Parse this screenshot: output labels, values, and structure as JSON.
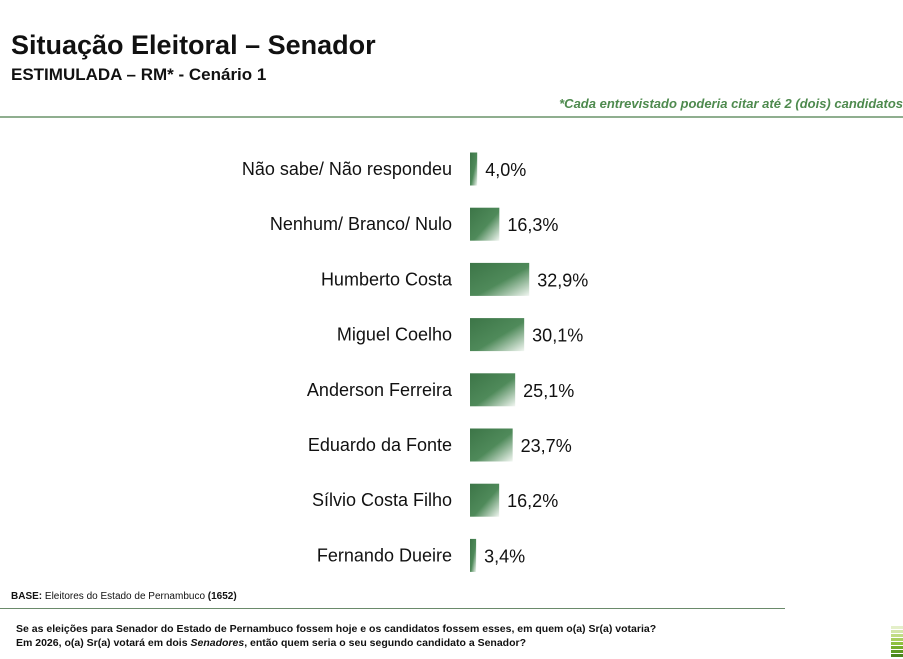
{
  "header": {
    "title": "Situação Eleitoral – Senador",
    "subtitle": "ESTIMULADA – RM* - Cenário 1",
    "note": "*Cada entrevistado poderia citar até 2 (dois) candidatos"
  },
  "chart_data": {
    "type": "bar",
    "orientation": "horizontal",
    "title": "",
    "xlabel": "",
    "ylabel": "",
    "categories": [
      "Não sabe/ Não respondeu",
      "Nenhum/ Branco/ Nulo",
      "Humberto Costa",
      "Miguel Coelho",
      "Anderson Ferreira",
      "Eduardo da Fonte",
      "Sílvio Costa Filho",
      "Fernando Dueire"
    ],
    "values": [
      4.0,
      16.3,
      32.9,
      30.1,
      25.1,
      23.7,
      16.2,
      3.4
    ],
    "value_labels": [
      "4,0%",
      "16,3%",
      "32,9%",
      "30,1%",
      "25,1%",
      "23,7%",
      "16,2%",
      "3,4%"
    ],
    "unit": "%",
    "xlim": [
      0,
      100
    ],
    "grid": false,
    "legend": "none",
    "bar_color": "#3f7a4a",
    "bar_highlight": "#ffffff"
  },
  "footer": {
    "base_label": "BASE:",
    "base_text": " Eleitores do Estado de Pernambuco ",
    "base_count": "(1652)",
    "question_line1": "Se as eleições para Senador do Estado de Pernambuco fossem hoje e os candidatos fossem esses, em quem o(a) Sr(a) votaria?",
    "question_line2_pre": "Em 2026, o(a) Sr(a) votará em dois ",
    "question_line2_em": "Senadores",
    "question_line2_post": ", então quem seria o seu segundo candidato a Senador?"
  },
  "colors": {
    "accent_green": "#4e8a4e",
    "rule_green": "#8fae8f"
  }
}
